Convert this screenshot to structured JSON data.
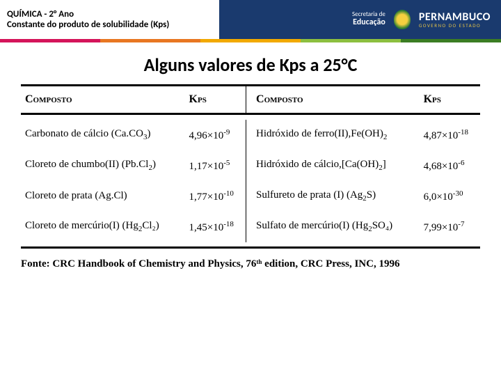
{
  "header": {
    "line1": "QUÍMICA - 2° Ano",
    "line2": "Constante do produto de solubilidade (Kps)",
    "secretaria_l1": "Secretaria de",
    "secretaria_l2": "Educação",
    "state": "PERNAMBUCO",
    "gov": "GOVERNO DO ESTADO"
  },
  "accent_colors": [
    "#d4145a",
    "#e87722",
    "#f2a900",
    "#8cbf3f",
    "#3b7d23"
  ],
  "title": "Alguns valores de Kps a 25°C",
  "columns": {
    "c1": "Composto",
    "c2": "Kps",
    "c3": "Composto",
    "c4": "Kps"
  },
  "rows": [
    {
      "left_name": "Carbonato de cálcio (Ca.CO",
      "left_sub": "3",
      "left_tail": ")",
      "left_kps_m": "4,96×10",
      "left_kps_e": "-9",
      "right_name": "Hidróxido de ferro(II),Fe(OH)",
      "right_sub": "2",
      "right_tail": "",
      "right_kps_m": "4,87×10",
      "right_kps_e": "-18"
    },
    {
      "left_name": "Cloreto de chumbo(II) (Pb.Cl",
      "left_sub": "2",
      "left_tail": ")",
      "left_kps_m": "1,17×10",
      "left_kps_e": "-5",
      "right_name": "Hidróxido de cálcio,[Ca(OH)",
      "right_sub": "2",
      "right_tail": "]",
      "right_kps_m": "4,68×10",
      "right_kps_e": "-6"
    },
    {
      "left_name": "Cloreto de prata (Ag.Cl)",
      "left_sub": "",
      "left_tail": "",
      "left_kps_m": "1,77×10",
      "left_kps_e": "-10",
      "right_name": "Sulfureto de prata (I) (Ag",
      "right_sub": "2",
      "right_tail": "S)",
      "right_kps_m": "6,0×10",
      "right_kps_e": "-30"
    },
    {
      "left_name": "Cloreto de mercúrio(I) (Hg",
      "left_sub": "2",
      "left_tail": "Cl₂)",
      "left_kps_m": "1,45×10",
      "left_kps_e": "-18",
      "right_name": "Sulfato de mercúrio(I) (Hg",
      "right_sub": "2",
      "right_tail": "SO₄)",
      "right_kps_m": "7,99×10",
      "right_kps_e": "-7"
    }
  ],
  "source": "Fonte: CRC Handbook of Chemistry and Physics, 76ᵗʰ edition, CRC Press, INC, 1996"
}
